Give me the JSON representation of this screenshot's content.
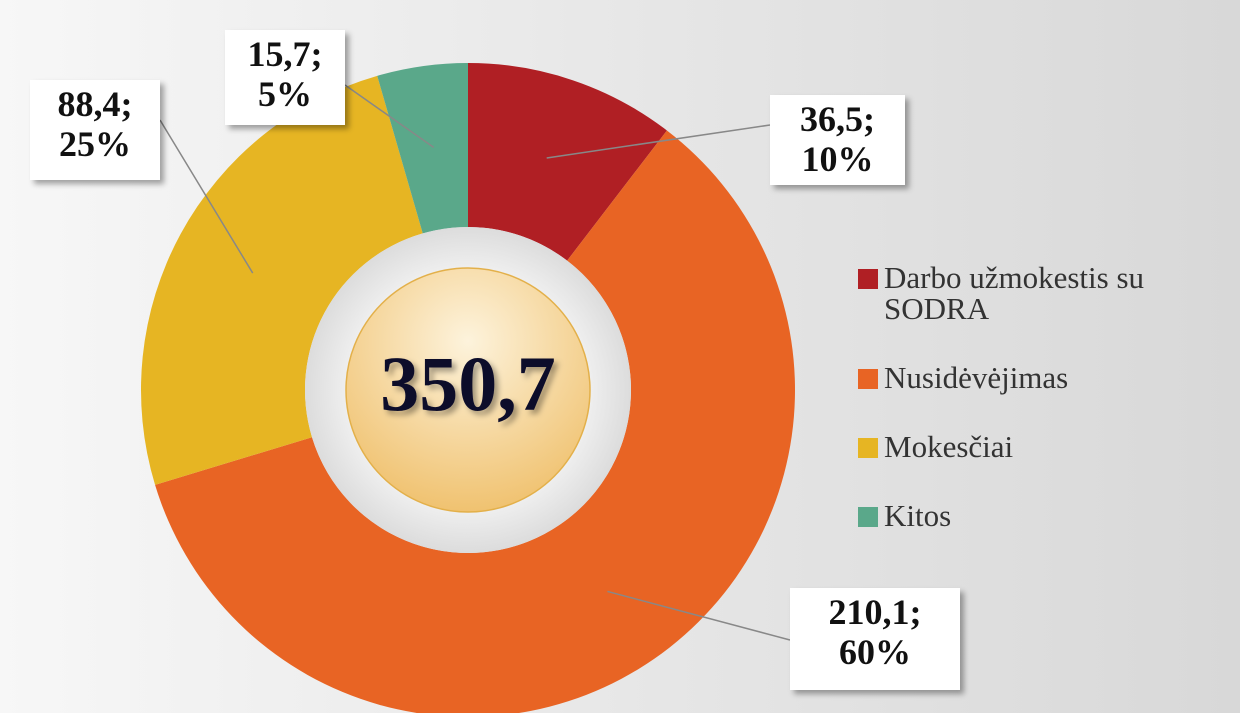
{
  "chart_data": {
    "type": "donut",
    "categories": [
      "Darbo užmokestis su SODRA",
      "Nusidėvėjimas",
      "Mokesčiai",
      "Kitos"
    ],
    "values": [
      36.5,
      210.1,
      88.4,
      15.7
    ],
    "value_labels": [
      [
        "36,5;",
        "10%"
      ],
      [
        "210,1;",
        "60%"
      ],
      [
        "88,4;",
        "25%"
      ],
      [
        "15,7;",
        "5%"
      ]
    ],
    "colors": [
      "#b01f24",
      "#e86424",
      "#e6b523",
      "#5aa88a"
    ],
    "center_label": "350,7",
    "legend": "right"
  }
}
